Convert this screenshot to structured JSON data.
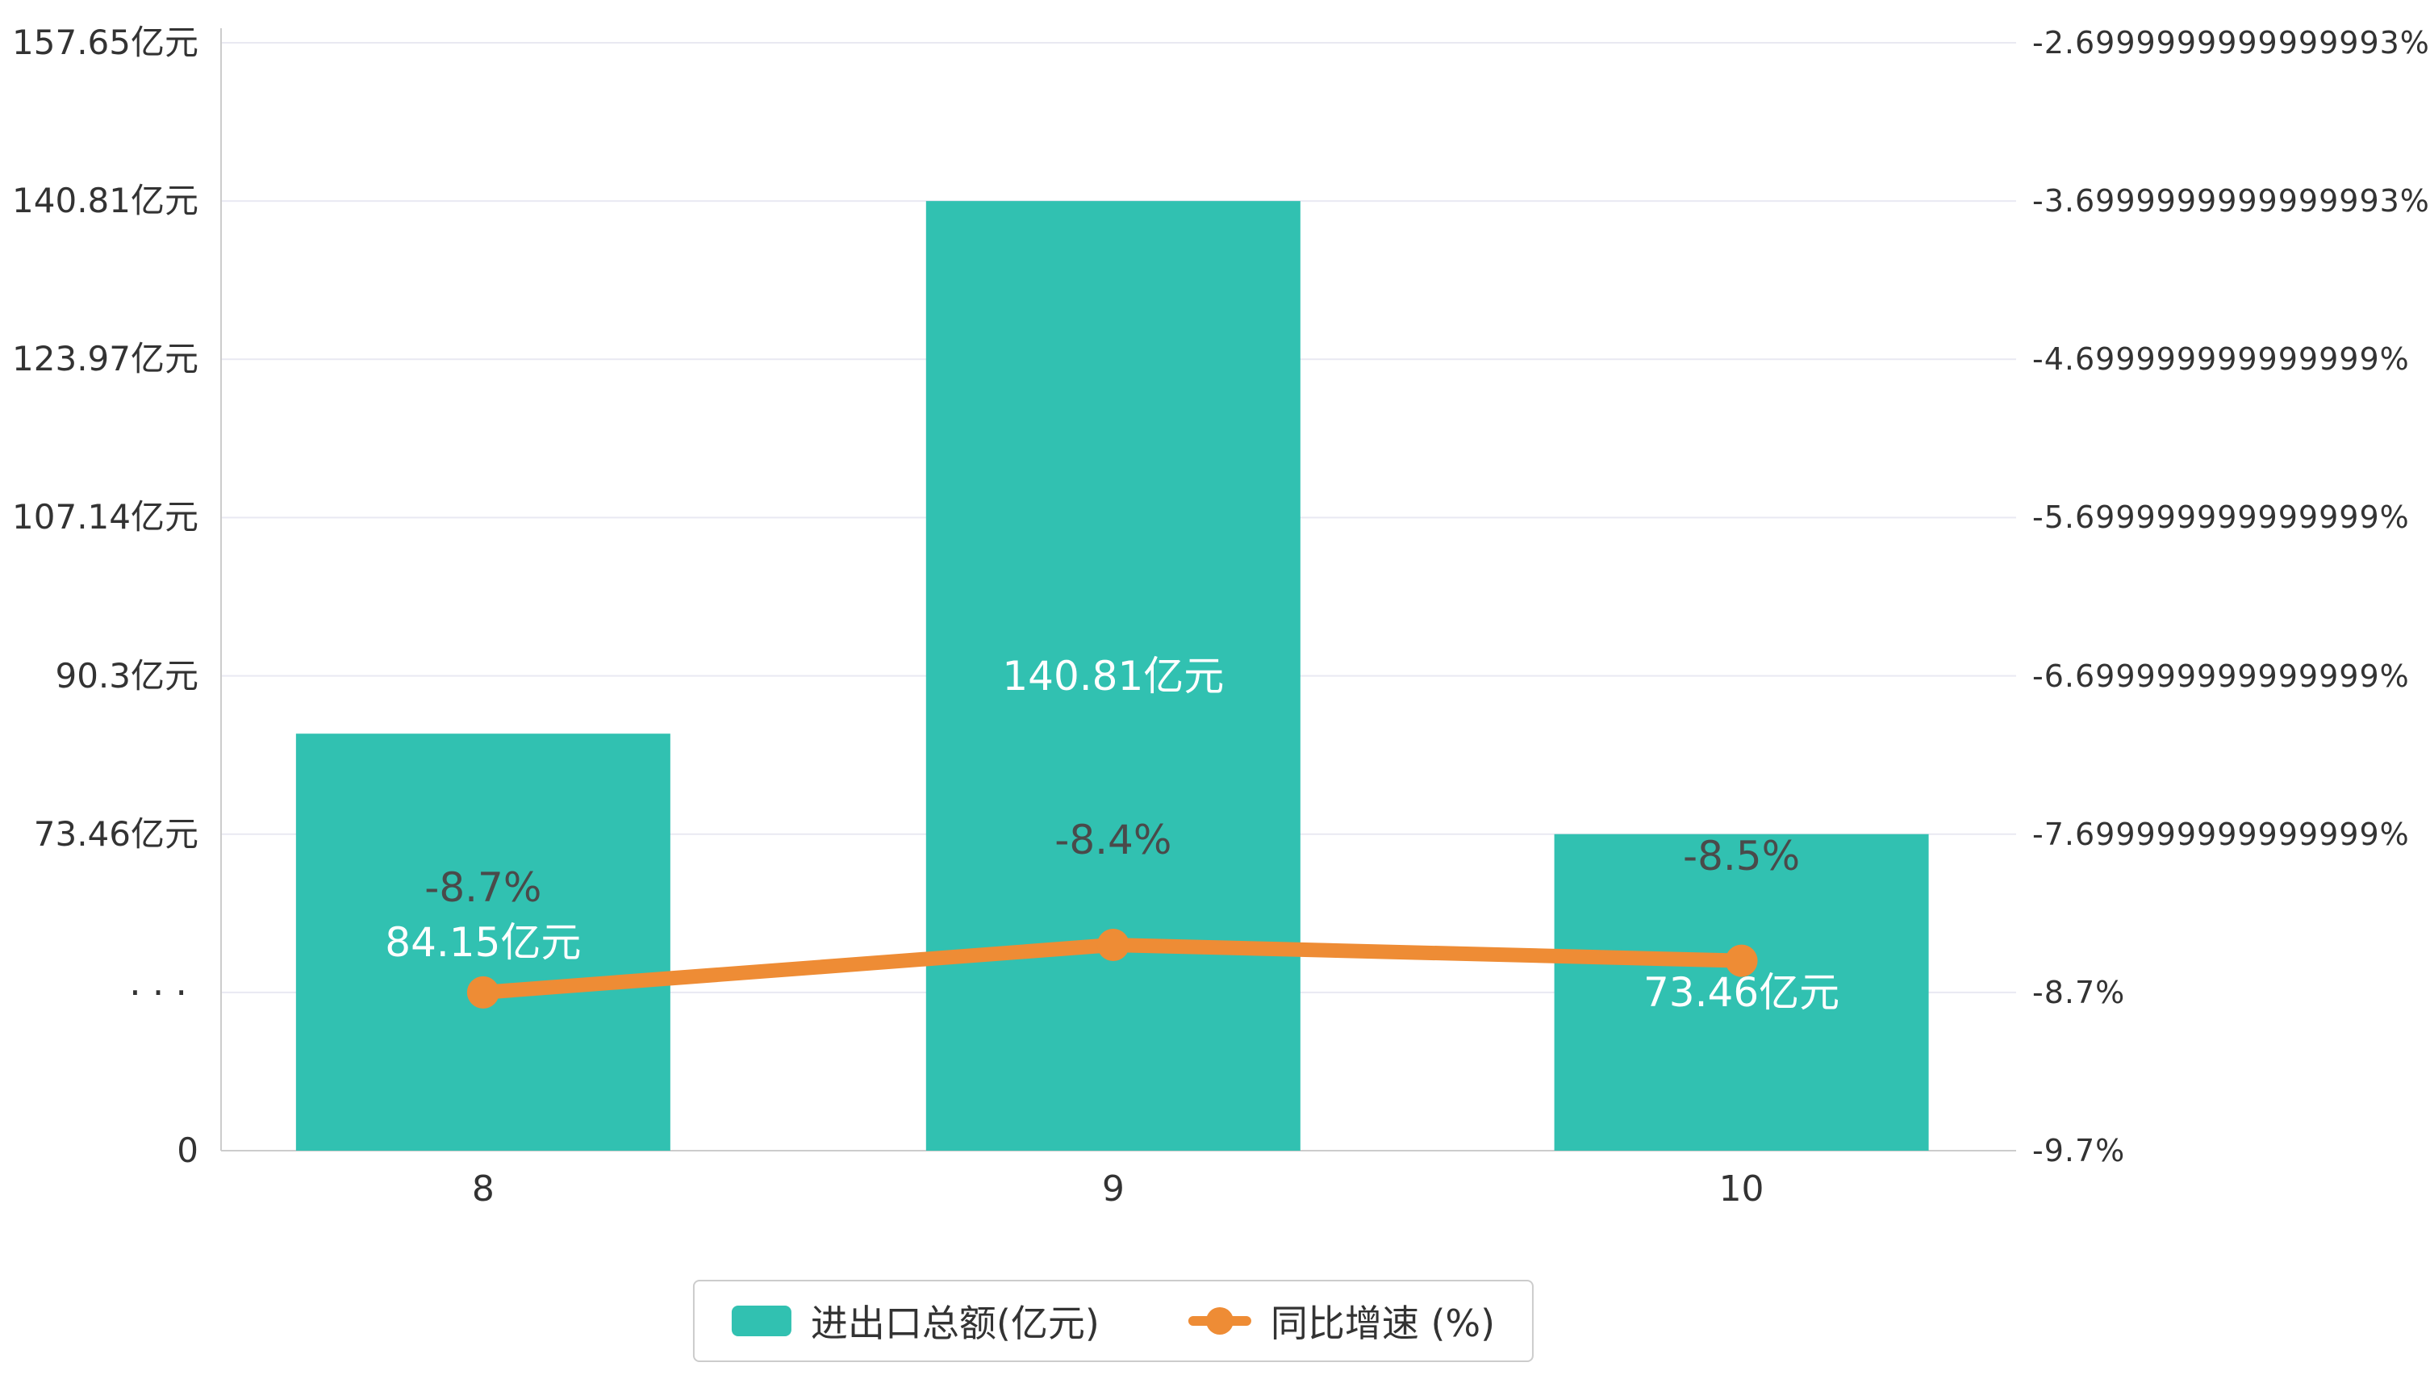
{
  "chart_data": {
    "type": "bar",
    "subtype": "bar-line-combo",
    "categories": [
      "8",
      "9",
      "10"
    ],
    "series": [
      {
        "name": "进出口总额(亿元)",
        "type": "bar",
        "axis": "left",
        "color": "#31c1b1",
        "values": [
          84.15,
          140.81,
          73.46
        ],
        "value_labels": [
          "84.15亿元",
          "140.81亿元",
          "73.46亿元"
        ]
      },
      {
        "name": "同比增速 (%)",
        "type": "line",
        "axis": "right",
        "color": "#ee8c35",
        "values": [
          -8.7,
          -8.4,
          -8.5
        ],
        "value_labels": [
          "-8.7%",
          "-8.4%",
          "-8.5%"
        ]
      }
    ],
    "left_axis": {
      "unit": "亿元",
      "axis_break": true,
      "tick_labels_top_to_bottom": [
        "157.65亿元",
        "140.81亿元",
        "123.97亿元",
        "107.14亿元",
        "90.3亿元",
        "73.46亿元",
        "···",
        "0"
      ]
    },
    "right_axis": {
      "unit": "%",
      "tick_labels_top_to_bottom": [
        "-2.6999999999999993%",
        "-3.6999999999999993%",
        "-4.699999999999999%",
        "-5.699999999999999%",
        "-6.699999999999999%",
        "-7.699999999999999%",
        "-8.7%",
        "-9.7%"
      ]
    },
    "grid": true,
    "legend_position": "bottom-center",
    "colors": {
      "bar": "#31c1b1",
      "line": "#ee8c35",
      "grid": "#e9e9f2",
      "axis": "#cccccc",
      "tick_text": "#333333",
      "pct_label_text": "#4a4a4a",
      "bar_label_text": "#ffffff",
      "background": "#ffffff"
    }
  }
}
